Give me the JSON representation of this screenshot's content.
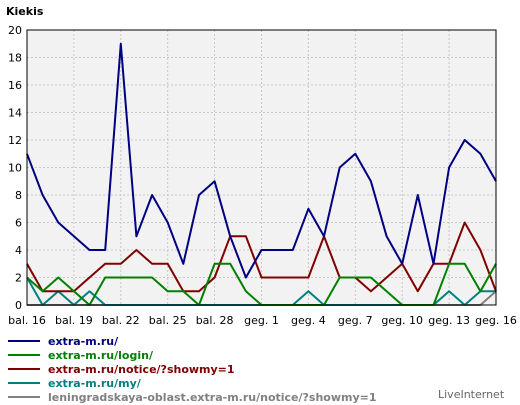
{
  "chart_data": {
    "type": "line",
    "title": "Kiekis",
    "ylim": [
      0,
      20
    ],
    "yticks": [
      0,
      2,
      4,
      6,
      8,
      10,
      12,
      14,
      16,
      18,
      20
    ],
    "grid": true,
    "x_tick_labels": [
      "bal. 16",
      "bal. 19",
      "bal. 22",
      "bal. 25",
      "bal. 28",
      "geg. 1",
      "geg. 4",
      "geg. 7",
      "geg. 10",
      "geg. 13",
      "geg. 16"
    ],
    "series": [
      {
        "name": "extra-m.ru/",
        "color": "#000080",
        "values": [
          11,
          8,
          6,
          5,
          4,
          4,
          19,
          5,
          8,
          6,
          3,
          8,
          9,
          5,
          2,
          4,
          4,
          4,
          7,
          5,
          10,
          11,
          9,
          5,
          3,
          8,
          3,
          10,
          12,
          11,
          9
        ]
      },
      {
        "name": "extra-m.ru/login/",
        "color": "#008000",
        "values": [
          2,
          1,
          2,
          1,
          0,
          2,
          2,
          2,
          2,
          1,
          1,
          0,
          3,
          3,
          1,
          0,
          0,
          0,
          0,
          0,
          2,
          2,
          2,
          1,
          0,
          0,
          0,
          3,
          3,
          1,
          3
        ]
      },
      {
        "name": "extra-m.ru/notice/?showmy=1",
        "color": "#800000",
        "values": [
          3,
          1,
          1,
          1,
          2,
          3,
          3,
          4,
          3,
          3,
          1,
          1,
          2,
          5,
          5,
          2,
          2,
          2,
          2,
          5,
          2,
          2,
          1,
          2,
          3,
          1,
          3,
          3,
          6,
          4,
          1
        ]
      },
      {
        "name": "extra-m.ru/my/",
        "color": "#008080",
        "values": [
          2,
          0,
          1,
          0,
          1,
          0,
          0,
          0,
          0,
          0,
          0,
          0,
          0,
          0,
          0,
          0,
          0,
          0,
          1,
          0,
          0,
          0,
          0,
          0,
          0,
          0,
          0,
          1,
          0,
          1,
          1
        ]
      },
      {
        "name": "leningradskaya-oblast.extra-m.ru/notice/?showmy=1",
        "color": "#808080",
        "values": [
          0,
          0,
          0,
          0,
          0,
          0,
          0,
          0,
          0,
          0,
          0,
          0,
          0,
          0,
          0,
          0,
          0,
          0,
          0,
          0,
          0,
          0,
          0,
          0,
          0,
          0,
          0,
          0,
          0,
          0,
          1
        ]
      }
    ]
  },
  "brand": "LiveInternet",
  "colors": {
    "plot_bg": "#f2f2f2",
    "grid": "#c8c8c8",
    "axis": "#000000"
  }
}
